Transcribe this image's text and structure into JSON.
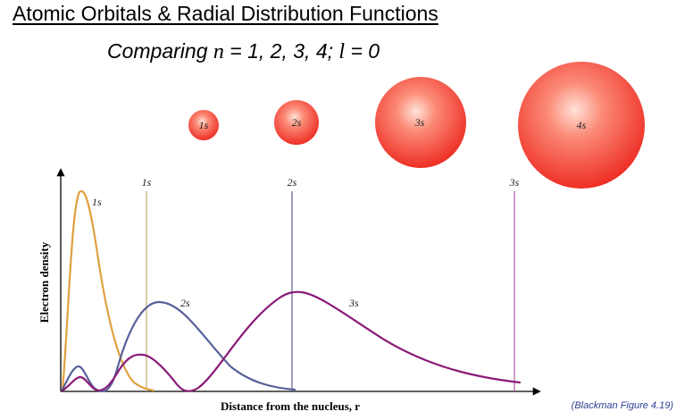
{
  "title": "Atomic Orbitals & Radial Distribution Functions",
  "subtitle": {
    "prefix": "Comparing ",
    "n_var": "n",
    "middle": " = 1, 2, 3, 4; ",
    "l_var": "l",
    "suffix": " = 0"
  },
  "orbitals": [
    {
      "label": "1s"
    },
    {
      "label": "2s"
    },
    {
      "label": "3s"
    },
    {
      "label": "4s"
    }
  ],
  "colors": {
    "sphere": "#f0362c",
    "curve_1s": "#e0a040",
    "curve_2s": "#56609a",
    "curve_3s": "#8a1a78",
    "line_1s": "#c9a870",
    "line_2s": "#5a6090",
    "line_3s": "#b05aa8",
    "caption": "#2b3f8f"
  },
  "graph": {
    "y_axis_label": "Electron density",
    "x_axis_label": "Distance from the nucleus, r",
    "curve_labels": [
      "1s",
      "2s",
      "3s"
    ],
    "line_labels": [
      "1s",
      "2s",
      "3s"
    ]
  },
  "caption": "(Blackman Figure 4.19)"
}
